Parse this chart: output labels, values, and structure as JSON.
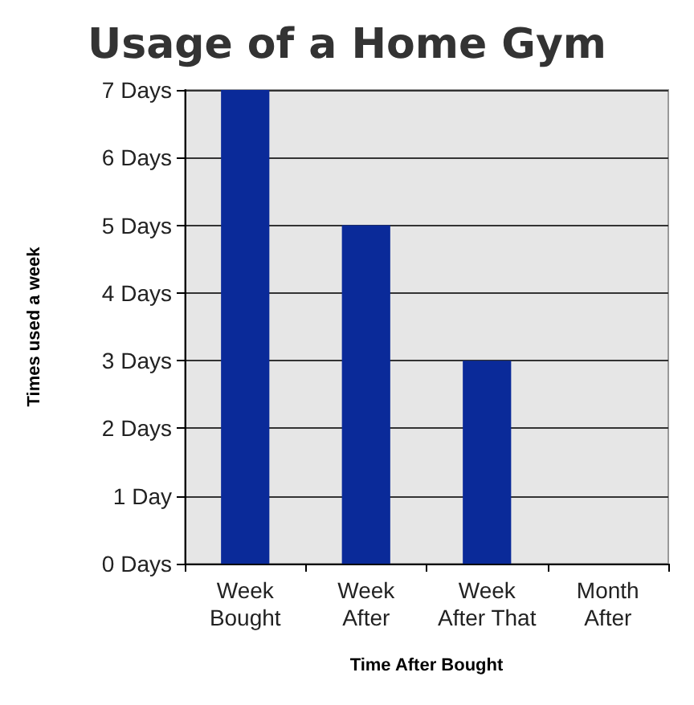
{
  "chart_data": {
    "type": "bar",
    "title": "Usage of a Home Gym",
    "xlabel": "Time After Bought",
    "ylabel": "Times used a week",
    "categories": [
      "Week\nBought",
      "Week\nAfter",
      "Week\nAfter That",
      "Month\nAfter"
    ],
    "values": [
      7,
      5,
      3,
      0
    ],
    "color": "#0a2a99",
    "ylim": [
      0,
      7
    ],
    "yticks": [
      {
        "value": 0,
        "label": "0 Days"
      },
      {
        "value": 1,
        "label": "1 Day"
      },
      {
        "value": 2,
        "label": "2 Days"
      },
      {
        "value": 3,
        "label": "3 Days"
      },
      {
        "value": 4,
        "label": "4 Days"
      },
      {
        "value": 5,
        "label": "5 Days"
      },
      {
        "value": 6,
        "label": "6 Days"
      },
      {
        "value": 7,
        "label": "7 Days"
      }
    ],
    "grid": "y"
  }
}
